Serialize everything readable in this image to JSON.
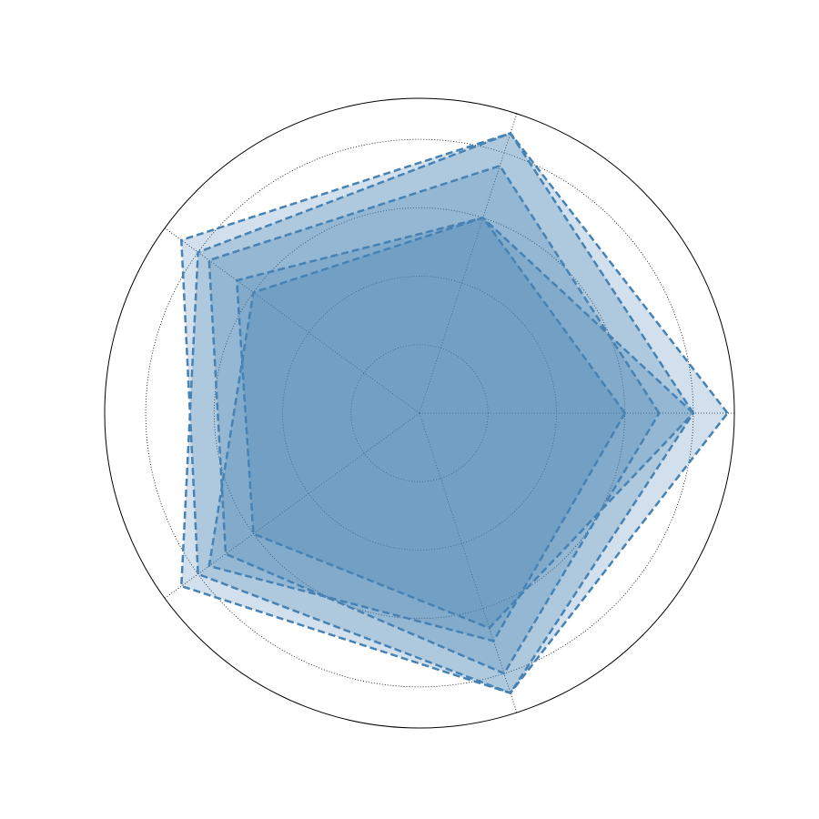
{
  "chart_data": {
    "type": "radar",
    "axes": 5,
    "rlim": [
      0,
      4.6
    ],
    "grid": true,
    "gridlines": [
      1,
      2,
      3,
      4
    ],
    "series": [
      {
        "values": [
          4.5,
          4.3,
          4.3,
          4.0,
          4.3
        ]
      },
      {
        "values": [
          4.0,
          4.3,
          4.0,
          4.3,
          4.3
        ]
      },
      {
        "values": [
          3.5,
          3.8,
          3.8,
          3.5,
          4.0
        ]
      },
      {
        "values": [
          4.0,
          3.0,
          3.3,
          3.0,
          3.3
        ]
      },
      {
        "values": [
          3.0,
          3.0,
          3.0,
          3.8,
          3.5
        ]
      }
    ],
    "colors": {
      "line": "#4682b4",
      "fill": "#4682b4",
      "fill_opacity": 0.25,
      "outer_circle": "#000000",
      "grid": "#000000"
    }
  }
}
